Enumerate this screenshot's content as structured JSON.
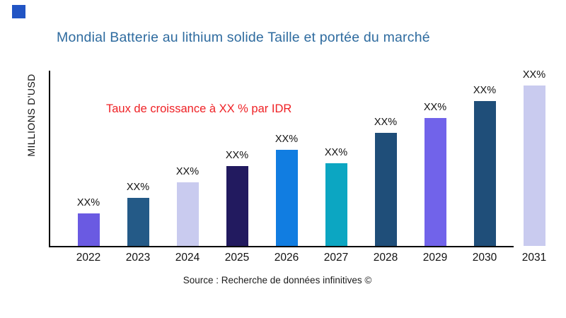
{
  "page": {
    "background": "#ffffff"
  },
  "brand": {
    "logo_color": "#2154C4"
  },
  "header": {
    "title": "Mondial Batterie au lithium solide Taille et portée du marché",
    "title_color": "#2E6B9F"
  },
  "annotation": {
    "text": "Taux de croissance à XX % par IDR",
    "color": "#EF2125"
  },
  "axes": {
    "y_label": "MILLIONS D'USD",
    "axis_color": "#000000"
  },
  "footer": {
    "source": "Source : Recherche de données infinitives ©"
  },
  "chart_data": {
    "type": "bar",
    "title": "Mondial Batterie au lithium solide Taille et portée du marché",
    "xlabel": "",
    "ylabel": "MILLIONS D'USD",
    "grid": false,
    "legend": "none",
    "categories": [
      "2022",
      "2023",
      "2024",
      "2025",
      "2026",
      "2027",
      "2028",
      "2029",
      "2030",
      "2031"
    ],
    "values_relative": [
      0.203,
      0.3,
      0.396,
      0.498,
      0.599,
      0.515,
      0.705,
      0.797,
      0.903,
      1.0
    ],
    "bar_labels": [
      "XX%",
      "XX%",
      "XX%",
      "XX%",
      "XX%",
      "XX%",
      "XX%",
      "XX%",
      "XX%",
      "XX%"
    ],
    "bar_colors": [
      "#6A5AE2",
      "#245A87",
      "#C9CBEF",
      "#221A5F",
      "#117DE1",
      "#0CA6C2",
      "#1F4E79",
      "#7163EA",
      "#1F4E79",
      "#C9CBEF"
    ],
    "annotation": "Taux de croissance à XX % par IDR",
    "source": "Source : Recherche de données infinitives ©"
  }
}
